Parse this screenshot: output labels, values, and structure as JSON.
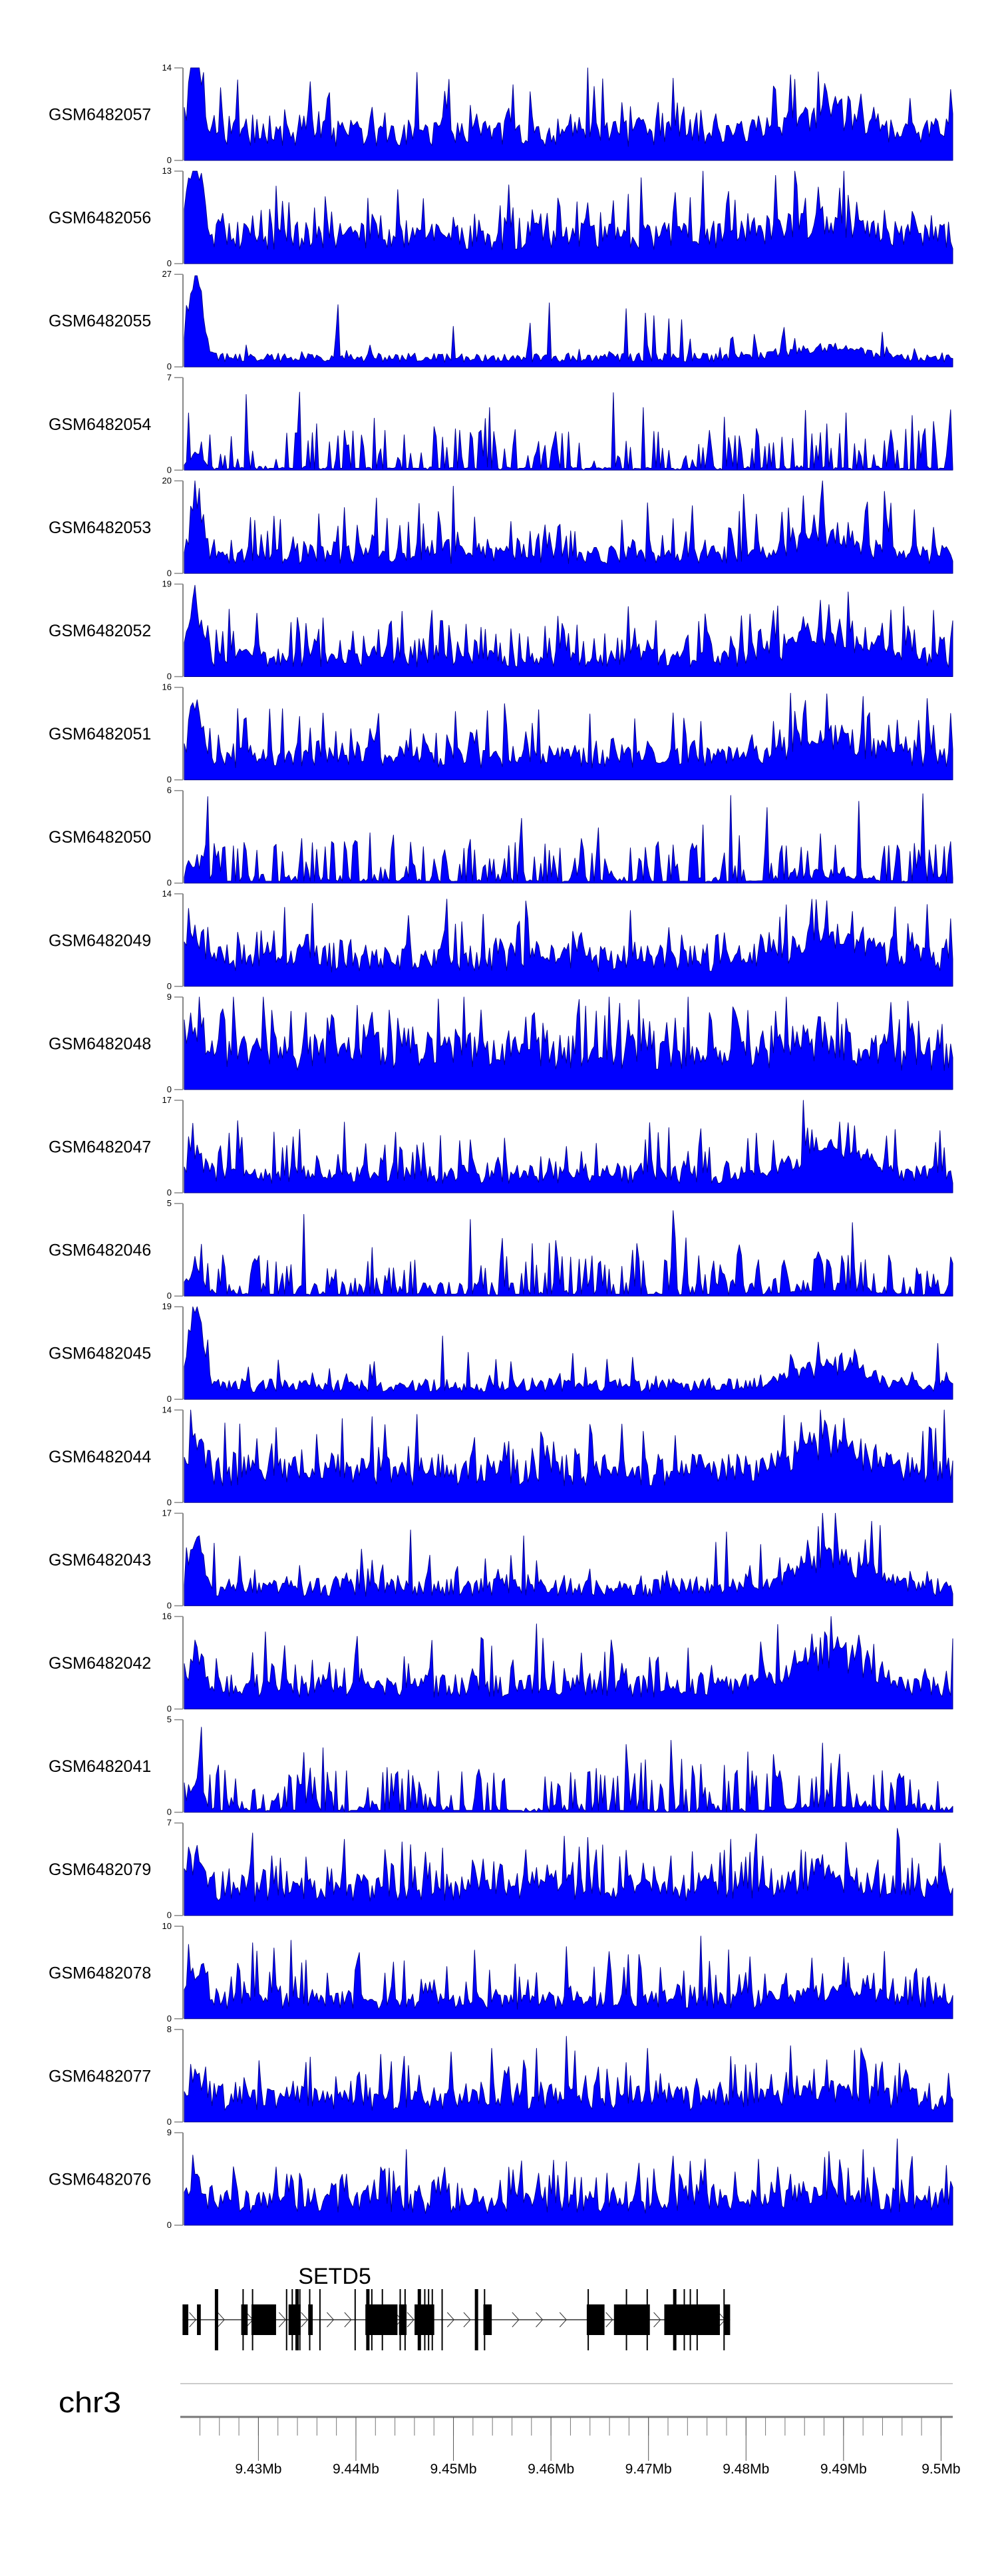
{
  "chart_data": {
    "type": "area",
    "title": "",
    "xlabel": "",
    "ylabel": "",
    "xlim_mb": [
      9.4224,
      9.5012
    ],
    "fill_color": "#0000FF",
    "line_color": "#00008B",
    "tracks": [
      {
        "name": "GSM6482057",
        "ylim": [
          0,
          14
        ]
      },
      {
        "name": "GSM6482056",
        "ylim": [
          0,
          13
        ]
      },
      {
        "name": "GSM6482055",
        "ylim": [
          0,
          27
        ]
      },
      {
        "name": "GSM6482054",
        "ylim": [
          0,
          7
        ]
      },
      {
        "name": "GSM6482053",
        "ylim": [
          0,
          20
        ]
      },
      {
        "name": "GSM6482052",
        "ylim": [
          0,
          19
        ]
      },
      {
        "name": "GSM6482051",
        "ylim": [
          0,
          16
        ]
      },
      {
        "name": "GSM6482050",
        "ylim": [
          0,
          6
        ]
      },
      {
        "name": "GSM6482049",
        "ylim": [
          0,
          14
        ]
      },
      {
        "name": "GSM6482048",
        "ylim": [
          0,
          9
        ]
      },
      {
        "name": "GSM6482047",
        "ylim": [
          0,
          17
        ]
      },
      {
        "name": "GSM6482046",
        "ylim": [
          0,
          5
        ]
      },
      {
        "name": "GSM6482045",
        "ylim": [
          0,
          19
        ]
      },
      {
        "name": "GSM6482044",
        "ylim": [
          0,
          14
        ]
      },
      {
        "name": "GSM6482043",
        "ylim": [
          0,
          17
        ]
      },
      {
        "name": "GSM6482042",
        "ylim": [
          0,
          16
        ]
      },
      {
        "name": "GSM6482041",
        "ylim": [
          0,
          5
        ]
      },
      {
        "name": "GSM6482079",
        "ylim": [
          0,
          7
        ]
      },
      {
        "name": "GSM6482078",
        "ylim": [
          0,
          10
        ]
      },
      {
        "name": "GSM6482077",
        "ylim": [
          0,
          8
        ]
      },
      {
        "name": "GSM6482076",
        "ylim": [
          0,
          9
        ]
      }
    ],
    "gene": {
      "name": "SETD5",
      "strand": "+",
      "start_mb": 9.42222,
      "end_mb": 9.47837,
      "exons_mb": [
        [
          9.42222,
          9.42281
        ],
        [
          9.4237,
          9.42409
        ],
        [
          9.42824,
          9.4289
        ],
        [
          9.42929,
          9.43181
        ],
        [
          9.43309,
          9.43433
        ],
        [
          9.43511,
          9.43557
        ],
        [
          9.44097,
          9.44426
        ],
        [
          9.44442,
          9.44519
        ],
        [
          9.44601,
          9.44803
        ],
        [
          9.45307,
          9.45393
        ],
        [
          9.46367,
          9.46549
        ],
        [
          9.46646,
          9.47014
        ],
        [
          9.47162,
          9.47732
        ],
        [
          9.47771,
          9.47837
        ]
      ],
      "tall_marks_mb": [
        9.4256,
        9.42843,
        9.4294,
        9.43289,
        9.43347,
        9.43386,
        9.43425,
        9.43526,
        9.43631,
        9.43992,
        9.44112,
        9.44163,
        9.44271,
        9.44454,
        9.44504,
        9.4464,
        9.44706,
        9.44745,
        9.44783,
        9.44884,
        9.45226,
        9.45319,
        9.46382,
        9.46774,
        9.46987,
        9.47259,
        9.47367,
        9.47429,
        9.47499,
        9.47775
      ]
    },
    "axis": {
      "chromosome": "chr3",
      "ticks": [
        {
          "mb": 9.43,
          "label": "9.43Mb"
        },
        {
          "mb": 9.44,
          "label": "9.44Mb"
        },
        {
          "mb": 9.45,
          "label": "9.45Mb"
        },
        {
          "mb": 9.46,
          "label": "9.46Mb"
        },
        {
          "mb": 9.47,
          "label": "9.47Mb"
        },
        {
          "mb": 9.48,
          "label": "9.48Mb"
        },
        {
          "mb": 9.49,
          "label": "9.49Mb"
        },
        {
          "mb": 9.5,
          "label": "9.5Mb"
        }
      ],
      "minor_step_mb": 0.002
    }
  }
}
